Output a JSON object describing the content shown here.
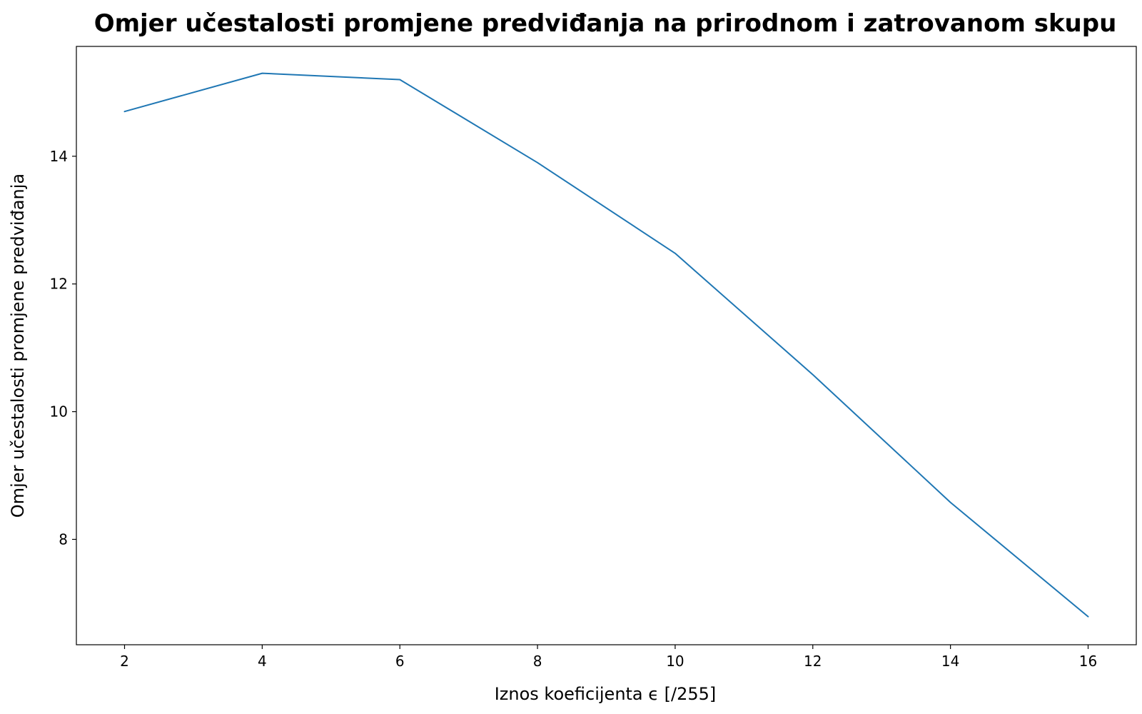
{
  "chart_data": {
    "type": "line",
    "title": "Omjer učestalosti promjene predviđanja na prirodnom i zatrovanom skupu",
    "xlabel": "Iznos koeficijenta ϵ [/255]",
    "ylabel": "Omjer učestalosti promjene predviđanja",
    "x": [
      2,
      4,
      6,
      8,
      10,
      12,
      14,
      16
    ],
    "series": [
      {
        "values": [
          14.7,
          15.3,
          15.2,
          13.9,
          12.48,
          10.58,
          8.58,
          6.79
        ],
        "color": "#1f77b4"
      }
    ],
    "xticks": [
      2,
      4,
      6,
      8,
      10,
      12,
      14,
      16
    ],
    "xtick_labels": [
      "2",
      "4",
      "6",
      "8",
      "10",
      "12",
      "14",
      "16"
    ],
    "yticks": [
      8,
      10,
      12,
      14
    ],
    "ytick_labels": [
      "8",
      "10",
      "12",
      "14"
    ],
    "xlim": [
      1.3,
      16.7
    ],
    "ylim": [
      6.35,
      15.72
    ],
    "grid": false,
    "legend": false
  }
}
